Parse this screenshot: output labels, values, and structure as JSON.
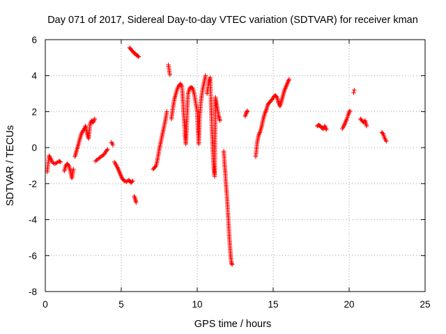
{
  "chart_data": {
    "type": "scatter",
    "title": "Day 071 of 2017, Sidereal Day-to-day VTEC variation (SDTVAR) for receiver kman",
    "xlabel": "GPS time / hours",
    "ylabel": "SDTVAR / TECUs",
    "xlim": [
      0,
      25
    ],
    "ylim": [
      -8,
      6
    ],
    "xticks": [
      0,
      5,
      10,
      15,
      20,
      25
    ],
    "yticks": [
      -8,
      -6,
      -4,
      -2,
      0,
      2,
      4,
      6
    ],
    "grid": true,
    "legend": "none",
    "marker": "+",
    "color": "#ff0000",
    "series": [
      {
        "name": "SDTVAR",
        "segments": [
          [
            [
              0.12,
              -1.35
            ],
            [
              0.25,
              -0.45
            ],
            [
              0.35,
              -0.6
            ],
            [
              0.45,
              -0.8
            ],
            [
              0.6,
              -0.9
            ],
            [
              0.75,
              -0.85
            ],
            [
              0.9,
              -0.75
            ],
            [
              1.0,
              -0.8
            ]
          ],
          [
            [
              1.25,
              -1.3
            ],
            [
              1.35,
              -1.0
            ],
            [
              1.45,
              -0.9
            ],
            [
              1.55,
              -1.0
            ],
            [
              1.65,
              -1.3
            ],
            [
              1.75,
              -1.7
            ],
            [
              1.85,
              -1.2
            ]
          ],
          [
            [
              1.95,
              -0.5
            ],
            [
              2.05,
              -0.2
            ],
            [
              2.15,
              0.1
            ],
            [
              2.25,
              0.4
            ],
            [
              2.35,
              0.7
            ],
            [
              2.45,
              0.9
            ],
            [
              2.55,
              1.0
            ],
            [
              2.65,
              1.2
            ],
            [
              2.75,
              0.8
            ],
            [
              2.85,
              0.5
            ],
            [
              2.95,
              1.3
            ],
            [
              3.05,
              1.5
            ],
            [
              3.15,
              1.4
            ],
            [
              3.25,
              1.6
            ]
          ],
          [
            [
              3.3,
              -0.75
            ],
            [
              3.45,
              -0.65
            ],
            [
              3.6,
              -0.55
            ],
            [
              3.75,
              -0.45
            ],
            [
              3.9,
              -0.35
            ],
            [
              4.0,
              -0.2
            ],
            [
              4.1,
              -0.1
            ]
          ],
          [
            [
              4.35,
              0.3
            ],
            [
              4.45,
              0.15
            ]
          ],
          [
            [
              4.55,
              -0.8
            ],
            [
              4.65,
              -0.95
            ],
            [
              4.75,
              -1.1
            ],
            [
              4.85,
              -1.3
            ],
            [
              4.95,
              -1.5
            ],
            [
              5.05,
              -1.7
            ],
            [
              5.2,
              -1.85
            ],
            [
              5.35,
              -1.9
            ],
            [
              5.5,
              -1.8
            ],
            [
              5.65,
              -1.95
            ],
            [
              5.75,
              -1.85
            ]
          ],
          [
            [
              5.85,
              -2.7
            ],
            [
              5.92,
              -2.85
            ],
            [
              5.98,
              -3.05
            ]
          ],
          [
            [
              5.55,
              5.55
            ],
            [
              5.65,
              5.45
            ],
            [
              5.75,
              5.35
            ],
            [
              5.85,
              5.25
            ],
            [
              5.95,
              5.2
            ],
            [
              6.05,
              5.12
            ],
            [
              6.15,
              5.05
            ]
          ],
          [
            [
              7.1,
              -1.2
            ],
            [
              7.2,
              -1.1
            ],
            [
              7.3,
              -1.0
            ],
            [
              7.4,
              -0.6
            ],
            [
              7.5,
              -0.1
            ],
            [
              7.6,
              0.3
            ],
            [
              7.7,
              0.7
            ],
            [
              7.8,
              1.1
            ],
            [
              7.9,
              1.5
            ],
            [
              8.0,
              2.0
            ]
          ],
          [
            [
              8.1,
              4.6
            ],
            [
              8.2,
              4.05
            ]
          ],
          [
            [
              8.3,
              1.6
            ],
            [
              8.4,
              2.2
            ],
            [
              8.5,
              2.7
            ],
            [
              8.6,
              3.0
            ],
            [
              8.7,
              3.3
            ],
            [
              8.8,
              3.45
            ],
            [
              8.9,
              3.55
            ],
            [
              9.0,
              3.4
            ],
            [
              9.05,
              2.7
            ],
            [
              9.1,
              2.0
            ],
            [
              9.15,
              1.4
            ],
            [
              9.2,
              0.7
            ],
            [
              9.25,
              0.2
            ],
            [
              9.3,
              1.0
            ],
            [
              9.35,
              2.2
            ],
            [
              9.4,
              3.0
            ],
            [
              9.5,
              3.3
            ],
            [
              9.6,
              3.35
            ],
            [
              9.7,
              3.3
            ],
            [
              9.8,
              3.0
            ],
            [
              9.9,
              2.5
            ],
            [
              10.0,
              2.0
            ],
            [
              10.05,
              1.0
            ],
            [
              10.1,
              0.2
            ],
            [
              10.15,
              1.5
            ],
            [
              10.25,
              2.6
            ],
            [
              10.35,
              3.2
            ],
            [
              10.45,
              3.6
            ],
            [
              10.55,
              4.0
            ]
          ],
          [
            [
              10.65,
              3.0
            ],
            [
              10.75,
              3.6
            ],
            [
              10.85,
              3.9
            ],
            [
              10.9,
              2.8
            ],
            [
              10.95,
              1.5
            ],
            [
              11.0,
              0.3
            ],
            [
              11.05,
              -0.6
            ],
            [
              11.1,
              -1.2
            ],
            [
              11.15,
              -1.6
            ],
            [
              11.2,
              2.8
            ],
            [
              11.3,
              2.3
            ],
            [
              11.4,
              1.8
            ],
            [
              11.5,
              1.5
            ]
          ],
          [
            [
              11.75,
              -0.2
            ],
            [
              11.8,
              -0.9
            ],
            [
              11.85,
              -1.4
            ],
            [
              11.9,
              -2.1
            ],
            [
              11.95,
              -2.6
            ],
            [
              12.0,
              -3.3
            ],
            [
              12.05,
              -4.0
            ],
            [
              12.1,
              -4.8
            ],
            [
              12.15,
              -5.4
            ],
            [
              12.2,
              -6.0
            ],
            [
              12.25,
              -6.4
            ],
            [
              12.3,
              -6.5
            ]
          ],
          [
            [
              13.15,
              1.75
            ],
            [
              13.25,
              1.95
            ],
            [
              13.3,
              2.05
            ]
          ],
          [
            [
              13.85,
              -0.5
            ],
            [
              13.95,
              0.3
            ],
            [
              14.05,
              0.7
            ],
            [
              14.15,
              0.9
            ],
            [
              14.25,
              1.2
            ],
            [
              14.35,
              1.6
            ],
            [
              14.45,
              1.9
            ],
            [
              14.55,
              2.1
            ],
            [
              14.65,
              2.4
            ],
            [
              14.75,
              2.5
            ],
            [
              14.85,
              2.6
            ],
            [
              14.95,
              2.7
            ],
            [
              15.05,
              2.85
            ],
            [
              15.15,
              2.9
            ],
            [
              15.25,
              2.8
            ],
            [
              15.35,
              2.5
            ],
            [
              15.45,
              2.3
            ],
            [
              15.55,
              2.6
            ],
            [
              15.65,
              2.9
            ],
            [
              15.75,
              3.2
            ],
            [
              15.85,
              3.4
            ],
            [
              15.95,
              3.6
            ],
            [
              16.05,
              3.8
            ]
          ],
          [
            [
              17.9,
              1.2
            ],
            [
              18.0,
              1.25
            ],
            [
              18.1,
              1.2
            ],
            [
              18.2,
              1.1
            ],
            [
              18.3,
              1.05
            ],
            [
              18.4,
              1.2
            ],
            [
              18.5,
              1.0
            ]
          ],
          [
            [
              19.55,
              1.05
            ],
            [
              19.65,
              1.2
            ],
            [
              19.75,
              1.4
            ],
            [
              19.85,
              1.6
            ],
            [
              19.95,
              1.85
            ],
            [
              20.05,
              2.05
            ]
          ],
          [
            [
              20.3,
              3.05
            ]
          ],
          [
            [
              20.75,
              1.6
            ],
            [
              20.85,
              1.5
            ],
            [
              20.95,
              1.4
            ],
            [
              21.05,
              1.5
            ],
            [
              21.15,
              1.2
            ]
          ],
          [
            [
              22.15,
              0.85
            ],
            [
              22.25,
              0.75
            ],
            [
              22.35,
              0.5
            ],
            [
              22.45,
              0.35
            ]
          ]
        ]
      }
    ]
  }
}
